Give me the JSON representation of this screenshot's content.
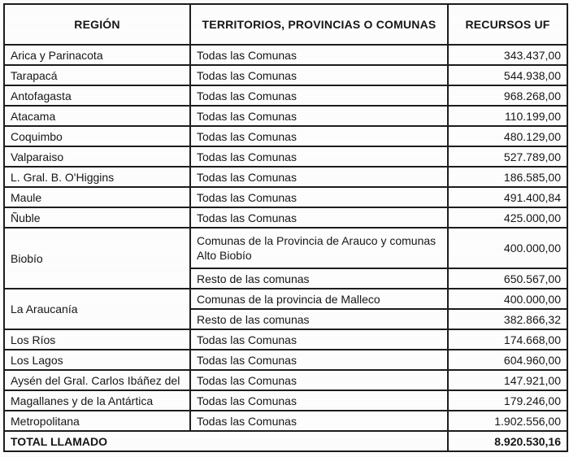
{
  "table": {
    "columns": [
      "REGIÓN",
      "TERRITORIOS, PROVINCIAS O COMUNAS",
      "RECURSOS UF"
    ],
    "rows": [
      {
        "region": "Arica y Parinacota",
        "territory": "Todas las Comunas",
        "amount": "343.437,00"
      },
      {
        "region": "Tarapacá",
        "territory": "Todas las Comunas",
        "amount": "544.938,00"
      },
      {
        "region": "Antofagasta",
        "territory": "Todas las Comunas",
        "amount": "968.268,00"
      },
      {
        "region": "Atacama",
        "territory": "Todas las Comunas",
        "amount": "110.199,00"
      },
      {
        "region": "Coquimbo",
        "territory": "Todas las Comunas",
        "amount": "480.129,00"
      },
      {
        "region": "Valparaiso",
        "territory": "Todas las Comunas",
        "amount": "527.789,00"
      },
      {
        "region": "L. Gral. B. O'Higgins",
        "territory": "Todas las Comunas",
        "amount": "186.585,00"
      },
      {
        "region": "Maule",
        "territory": "Todas las Comunas",
        "amount": "491.400,84"
      },
      {
        "region": "Ñuble",
        "territory": "Todas las Comunas",
        "amount": "425.000,00"
      },
      {
        "region": "Biobío",
        "territory": "Comunas de la Provincia de Arauco y comunas Alto Biobío",
        "amount": "400.000,00"
      },
      {
        "territory": "Resto de las comunas",
        "amount": "650.567,00"
      },
      {
        "region": "La Araucanía",
        "territory": "Comunas de la provincia de Malleco",
        "amount": "400.000,00"
      },
      {
        "territory": "Resto de las comunas",
        "amount": "382.866,32"
      },
      {
        "region": "Los Ríos",
        "territory": "Todas las Comunas",
        "amount": "174.668,00"
      },
      {
        "region": "Los Lagos",
        "territory": "Todas las Comunas",
        "amount": "604.960,00"
      },
      {
        "region": "Aysén del Gral. Carlos Ibáñez del",
        "territory": "Todas las Comunas",
        "amount": "147.921,00"
      },
      {
        "region": "Magallanes y de la Antártica",
        "territory": "Todas las Comunas",
        "amount": "179.246,00"
      },
      {
        "region": "Metropolitana",
        "territory": "Todas las Comunas",
        "amount": "1.902.556,00"
      }
    ],
    "total": {
      "label": "TOTAL LLAMADO",
      "amount": "8.920.530,16"
    }
  },
  "colors": {
    "border": "#1d1d1d",
    "text": "#161616",
    "background": "#fefefe"
  }
}
